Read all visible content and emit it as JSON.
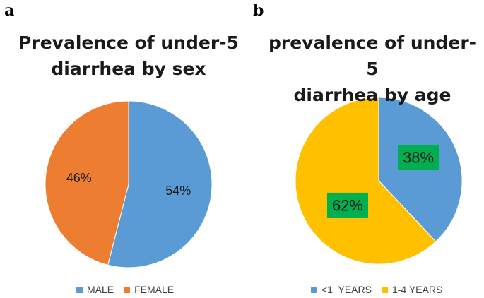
{
  "chart_data": [
    {
      "type": "pie",
      "panel_label": "a",
      "title_lines": [
        "Prevalence of under-5",
        "diarrhea by sex"
      ],
      "categories": [
        "MALE",
        "FEMALE"
      ],
      "values": [
        54,
        46
      ],
      "data_labels": [
        "54%",
        "46%"
      ],
      "colors": [
        "#5B9BD5",
        "#ED7D31"
      ],
      "label_box_colors": [
        null,
        null
      ],
      "legend_position": "bottom"
    },
    {
      "type": "pie",
      "panel_label": "b",
      "title_lines": [
        "prevalence of under-5",
        "diarrhea by age"
      ],
      "categories": [
        "<1  YEARS",
        "1-4 YEARS"
      ],
      "values": [
        38,
        62
      ],
      "data_labels": [
        "38%",
        "62%"
      ],
      "colors": [
        "#5B9BD5",
        "#FFC000"
      ],
      "label_box_colors": [
        "#00B050",
        "#00B050"
      ],
      "legend_position": "bottom"
    }
  ]
}
